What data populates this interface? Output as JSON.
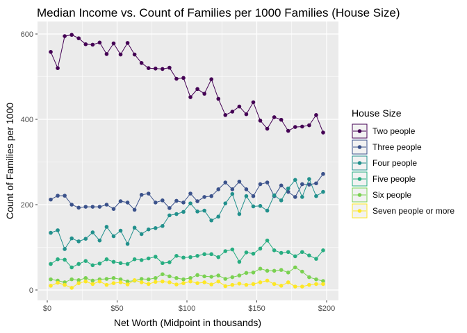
{
  "chart_data": {
    "type": "line",
    "title": "Median Income vs. Count of Families per 1000 Families (House Size)",
    "xlabel": "Net Worth (Midpoint in thousands)",
    "ylabel": "Count of Families per 1000",
    "xlim": [
      0,
      200
    ],
    "ylim": [
      0,
      600
    ],
    "x_ticks": [
      0,
      50,
      100,
      150,
      200
    ],
    "x_tick_labels": [
      "$0",
      "$50",
      "$100",
      "$150",
      "$200"
    ],
    "y_ticks": [
      0,
      200,
      400,
      600
    ],
    "y_tick_labels": [
      "0",
      "200",
      "400",
      "600"
    ],
    "grid": true,
    "legend_title": "House Size",
    "legend_position": "right",
    "x": [
      2.5,
      7.5,
      12.5,
      17.5,
      22.5,
      27.5,
      32.5,
      37.5,
      42.5,
      47.5,
      52.5,
      57.5,
      62.5,
      67.5,
      72.5,
      77.5,
      82.5,
      87.5,
      92.5,
      97.5,
      102.5,
      107.5,
      112.5,
      117.5,
      122.5,
      127.5,
      132.5,
      137.5,
      142.5,
      147.5,
      152.5,
      157.5,
      162.5,
      167.5,
      172.5,
      177.5,
      182.5,
      187.5,
      192.5,
      197.5
    ],
    "series": [
      {
        "name": "Two people",
        "color": "#440154",
        "values": [
          558,
          520,
          595,
          598,
          590,
          576,
          575,
          580,
          553,
          578,
          552,
          579,
          552,
          532,
          520,
          519,
          518,
          521,
          495,
          497,
          452,
          471,
          460,
          494,
          448,
          410,
          418,
          430,
          412,
          440,
          397,
          378,
          405,
          399,
          373,
          382,
          383,
          386,
          410,
          369
        ]
      },
      {
        "name": "Three people",
        "color": "#3B528B",
        "values": [
          212,
          221,
          221,
          200,
          193,
          195,
          195,
          195,
          200,
          190,
          208,
          205,
          188,
          223,
          226,
          205,
          210,
          192,
          209,
          205,
          226,
          208,
          218,
          220,
          236,
          252,
          236,
          254,
          236,
          220,
          248,
          252,
          220,
          245,
          230,
          218,
          248,
          247,
          250,
          272
        ]
      },
      {
        "name": "Four people",
        "color": "#21908C",
        "values": [
          134,
          140,
          96,
          121,
          114,
          120,
          135,
          116,
          148,
          126,
          139,
          108,
          146,
          131,
          142,
          145,
          150,
          175,
          178,
          183,
          203,
          184,
          186,
          163,
          172,
          203,
          225,
          178,
          220,
          196,
          197,
          186,
          222,
          210,
          238,
          258,
          218,
          260,
          220,
          230
        ]
      },
      {
        "name": "Five people",
        "color": "#27AD81",
        "values": [
          61,
          72,
          71,
          53,
          61,
          68,
          58,
          62,
          72,
          66,
          63,
          61,
          72,
          70,
          74,
          78,
          63,
          65,
          80,
          76,
          77,
          80,
          84,
          84,
          77,
          91,
          95,
          66,
          88,
          85,
          97,
          116,
          93,
          87,
          89,
          79,
          89,
          81,
          73,
          93
        ]
      },
      {
        "name": "Six people",
        "color": "#7AD151",
        "values": [
          25,
          22,
          18,
          25,
          23,
          28,
          22,
          25,
          26,
          28,
          25,
          20,
          22,
          26,
          25,
          28,
          37,
          32,
          28,
          25,
          28,
          35,
          32,
          31,
          34,
          26,
          30,
          34,
          40,
          41,
          50,
          45,
          45,
          47,
          41,
          53,
          43,
          30,
          25,
          21
        ]
      },
      {
        "name": "Seven people or more",
        "color": "#FDE725",
        "values": [
          10,
          17,
          12,
          5,
          16,
          20,
          14,
          20,
          12,
          16,
          18,
          13,
          23,
          18,
          14,
          19,
          20,
          18,
          13,
          16,
          20,
          16,
          18,
          13,
          20,
          9,
          12,
          15,
          12,
          14,
          18,
          22,
          14,
          10,
          18,
          8,
          8,
          12,
          14,
          14
        ]
      }
    ]
  }
}
